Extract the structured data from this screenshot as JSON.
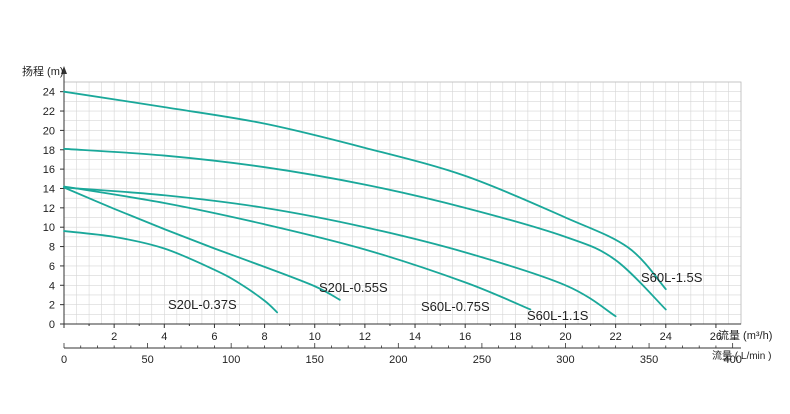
{
  "chart_data": {
    "type": "line",
    "ylabel": "扬程 (m)",
    "xlabel_primary": "流量 (m³/h)",
    "xlabel_secondary": "流量 ( L/min )",
    "ylim": [
      0,
      25
    ],
    "xlim_primary": [
      0,
      27
    ],
    "xlim_secondary": [
      0,
      405
    ],
    "y_ticks": [
      "0",
      "2",
      "4",
      "6",
      "8",
      "10",
      "12",
      "14",
      "16",
      "18",
      "20",
      "22",
      "24"
    ],
    "x_ticks_primary": [
      "2",
      "4",
      "6",
      "8",
      "10",
      "12",
      "14",
      "16",
      "18",
      "20",
      "22",
      "24",
      "26"
    ],
    "x_ticks_secondary": [
      "0",
      "50",
      "100",
      "150",
      "200",
      "250",
      "300",
      "350",
      "400"
    ],
    "grid": true,
    "line_color": "#1aa89a",
    "series": [
      {
        "name": "S20L-0.37S",
        "x": [
          0,
          2,
          4,
          6,
          7,
          8,
          8.5
        ],
        "y": [
          9.6,
          9.0,
          7.8,
          5.6,
          4.2,
          2.4,
          1.2
        ]
      },
      {
        "name": "S20L-0.55S",
        "x": [
          0,
          2,
          4,
          6,
          8,
          10,
          11
        ],
        "y": [
          14.1,
          11.9,
          9.8,
          7.8,
          5.9,
          3.9,
          2.5
        ]
      },
      {
        "name": "S60L-0.75S",
        "x": [
          0,
          4,
          8,
          12,
          16,
          18.6
        ],
        "y": [
          14.2,
          12.5,
          10.3,
          7.7,
          4.3,
          1.5
        ]
      },
      {
        "name": "S60L-1.1S",
        "x": [
          0,
          4,
          8,
          12,
          16,
          20,
          22
        ],
        "y": [
          14.1,
          13.3,
          12.0,
          10.0,
          7.4,
          4.0,
          0.8
        ]
      },
      {
        "name": "S60L-1.5S",
        "x": [
          0,
          4,
          8,
          12,
          16,
          20,
          22,
          24
        ],
        "y": [
          18.1,
          17.4,
          16.2,
          14.4,
          12.0,
          9.0,
          6.6,
          1.5
        ]
      },
      {
        "name": "",
        "x": [
          0,
          4,
          8,
          12,
          16,
          20,
          22.5,
          24
        ],
        "y": [
          24.0,
          22.4,
          20.7,
          18.2,
          15.3,
          11.0,
          7.9,
          3.6
        ]
      }
    ]
  }
}
